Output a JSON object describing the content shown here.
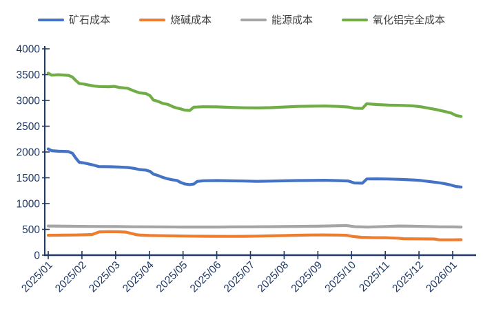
{
  "chart_data": {
    "type": "line",
    "title": "",
    "xlabel": "",
    "ylabel": "",
    "grid": false,
    "legend_position": "top",
    "axis_color": "#1F3864",
    "tick_label_color": "#1F3864",
    "legend_text_color": "#404040",
    "x_labels": [
      "2025/01",
      "2025/02",
      "2025/03",
      "2025/04",
      "2025/05",
      "2025/06",
      "2025/07",
      "2025/08",
      "2025/09",
      "2025/10",
      "2025/11",
      "2025/12",
      "2026/01"
    ],
    "y_axis": {
      "min": 0,
      "max": 4000,
      "step": 500,
      "ticks": [
        "0",
        "500",
        "1000",
        "1500",
        "2000",
        "2500",
        "3000",
        "3500",
        "4000"
      ]
    },
    "x_unit": "months-since-2025-01",
    "series": [
      {
        "name": "矿石成本",
        "color": "#4472C4",
        "points": [
          [
            0,
            2060
          ],
          [
            0.1,
            2025
          ],
          [
            0.3,
            2015
          ],
          [
            0.6,
            2008
          ],
          [
            0.72,
            1975
          ],
          [
            0.82,
            1880
          ],
          [
            0.92,
            1800
          ],
          [
            1.05,
            1790
          ],
          [
            1.2,
            1768
          ],
          [
            1.35,
            1745
          ],
          [
            1.5,
            1718
          ],
          [
            1.8,
            1714
          ],
          [
            2.1,
            1708
          ],
          [
            2.35,
            1700
          ],
          [
            2.55,
            1683
          ],
          [
            2.7,
            1660
          ],
          [
            2.9,
            1648
          ],
          [
            3.02,
            1625
          ],
          [
            3.12,
            1572
          ],
          [
            3.25,
            1545
          ],
          [
            3.4,
            1508
          ],
          [
            3.55,
            1478
          ],
          [
            3.7,
            1458
          ],
          [
            3.82,
            1448
          ],
          [
            3.92,
            1412
          ],
          [
            4.05,
            1382
          ],
          [
            4.2,
            1368
          ],
          [
            4.32,
            1378
          ],
          [
            4.42,
            1430
          ],
          [
            4.6,
            1443
          ],
          [
            5,
            1447
          ],
          [
            5.4,
            1441
          ],
          [
            5.8,
            1437
          ],
          [
            6.2,
            1431
          ],
          [
            6.6,
            1436
          ],
          [
            7,
            1441
          ],
          [
            7.4,
            1447
          ],
          [
            7.8,
            1448
          ],
          [
            8.2,
            1452
          ],
          [
            8.6,
            1446
          ],
          [
            8.9,
            1438
          ],
          [
            9.08,
            1400
          ],
          [
            9.32,
            1394
          ],
          [
            9.45,
            1477
          ],
          [
            9.75,
            1480
          ],
          [
            10.1,
            1476
          ],
          [
            10.45,
            1469
          ],
          [
            10.8,
            1458
          ],
          [
            11.05,
            1448
          ],
          [
            11.3,
            1428
          ],
          [
            11.55,
            1408
          ],
          [
            11.75,
            1388
          ],
          [
            11.95,
            1358
          ],
          [
            12.1,
            1332
          ],
          [
            12.25,
            1322
          ]
        ]
      },
      {
        "name": "烧碱成本",
        "color": "#ED7D31",
        "points": [
          [
            0,
            385
          ],
          [
            0.4,
            388
          ],
          [
            0.8,
            391
          ],
          [
            1.1,
            394
          ],
          [
            1.3,
            400
          ],
          [
            1.42,
            428
          ],
          [
            1.52,
            452
          ],
          [
            1.8,
            456
          ],
          [
            2.1,
            453
          ],
          [
            2.3,
            447
          ],
          [
            2.45,
            424
          ],
          [
            2.6,
            398
          ],
          [
            2.75,
            388
          ],
          [
            3,
            382
          ],
          [
            3.4,
            377
          ],
          [
            3.8,
            373
          ],
          [
            4.2,
            370
          ],
          [
            4.6,
            367
          ],
          [
            5,
            366
          ],
          [
            5.4,
            364
          ],
          [
            5.8,
            365
          ],
          [
            6.2,
            370
          ],
          [
            6.6,
            375
          ],
          [
            7,
            380
          ],
          [
            7.4,
            387
          ],
          [
            7.8,
            391
          ],
          [
            8.2,
            392
          ],
          [
            8.6,
            390
          ],
          [
            8.85,
            385
          ],
          [
            9.05,
            362
          ],
          [
            9.3,
            345
          ],
          [
            9.6,
            340
          ],
          [
            10,
            338
          ],
          [
            10.35,
            330
          ],
          [
            10.55,
            318
          ],
          [
            11,
            316
          ],
          [
            11.45,
            313
          ],
          [
            11.6,
            299
          ],
          [
            12,
            297
          ],
          [
            12.25,
            300
          ]
        ]
      },
      {
        "name": "能源成本",
        "color": "#A5A5A5",
        "points": [
          [
            0,
            566
          ],
          [
            0.5,
            562
          ],
          [
            1,
            558
          ],
          [
            1.5,
            556
          ],
          [
            2,
            554
          ],
          [
            2.5,
            551
          ],
          [
            3,
            549
          ],
          [
            3.5,
            547
          ],
          [
            4,
            546
          ],
          [
            4.5,
            545
          ],
          [
            5,
            546
          ],
          [
            5.5,
            548
          ],
          [
            6,
            550
          ],
          [
            6.5,
            552
          ],
          [
            7,
            555
          ],
          [
            7.5,
            558
          ],
          [
            8,
            562
          ],
          [
            8.5,
            570
          ],
          [
            8.85,
            574
          ],
          [
            9.1,
            552
          ],
          [
            9.5,
            546
          ],
          [
            10,
            556
          ],
          [
            10.4,
            566
          ],
          [
            10.8,
            562
          ],
          [
            11.2,
            556
          ],
          [
            11.6,
            550
          ],
          [
            12,
            548
          ],
          [
            12.25,
            546
          ]
        ]
      },
      {
        "name": "氧化铝完全成本",
        "color": "#70AD47",
        "points": [
          [
            0,
            3530
          ],
          [
            0.1,
            3490
          ],
          [
            0.3,
            3498
          ],
          [
            0.6,
            3486
          ],
          [
            0.72,
            3452
          ],
          [
            0.82,
            3385
          ],
          [
            0.92,
            3328
          ],
          [
            1.05,
            3318
          ],
          [
            1.2,
            3298
          ],
          [
            1.35,
            3280
          ],
          [
            1.5,
            3270
          ],
          [
            1.8,
            3266
          ],
          [
            1.95,
            3272
          ],
          [
            2.1,
            3252
          ],
          [
            2.35,
            3236
          ],
          [
            2.55,
            3182
          ],
          [
            2.7,
            3148
          ],
          [
            2.9,
            3132
          ],
          [
            3.02,
            3092
          ],
          [
            3.12,
            3008
          ],
          [
            3.25,
            2982
          ],
          [
            3.4,
            2942
          ],
          [
            3.55,
            2922
          ],
          [
            3.7,
            2878
          ],
          [
            3.82,
            2852
          ],
          [
            3.92,
            2838
          ],
          [
            4.05,
            2812
          ],
          [
            4.2,
            2806
          ],
          [
            4.32,
            2870
          ],
          [
            4.6,
            2878
          ],
          [
            5,
            2874
          ],
          [
            5.4,
            2866
          ],
          [
            5.8,
            2858
          ],
          [
            6.2,
            2854
          ],
          [
            6.6,
            2860
          ],
          [
            7,
            2872
          ],
          [
            7.4,
            2884
          ],
          [
            7.8,
            2888
          ],
          [
            8.2,
            2892
          ],
          [
            8.6,
            2884
          ],
          [
            8.9,
            2872
          ],
          [
            9.08,
            2850
          ],
          [
            9.32,
            2844
          ],
          [
            9.45,
            2936
          ],
          [
            9.75,
            2920
          ],
          [
            10.1,
            2910
          ],
          [
            10.45,
            2904
          ],
          [
            10.8,
            2894
          ],
          [
            11.05,
            2878
          ],
          [
            11.3,
            2848
          ],
          [
            11.55,
            2818
          ],
          [
            11.75,
            2788
          ],
          [
            11.95,
            2756
          ],
          [
            12.1,
            2708
          ],
          [
            12.25,
            2690
          ]
        ]
      }
    ]
  }
}
